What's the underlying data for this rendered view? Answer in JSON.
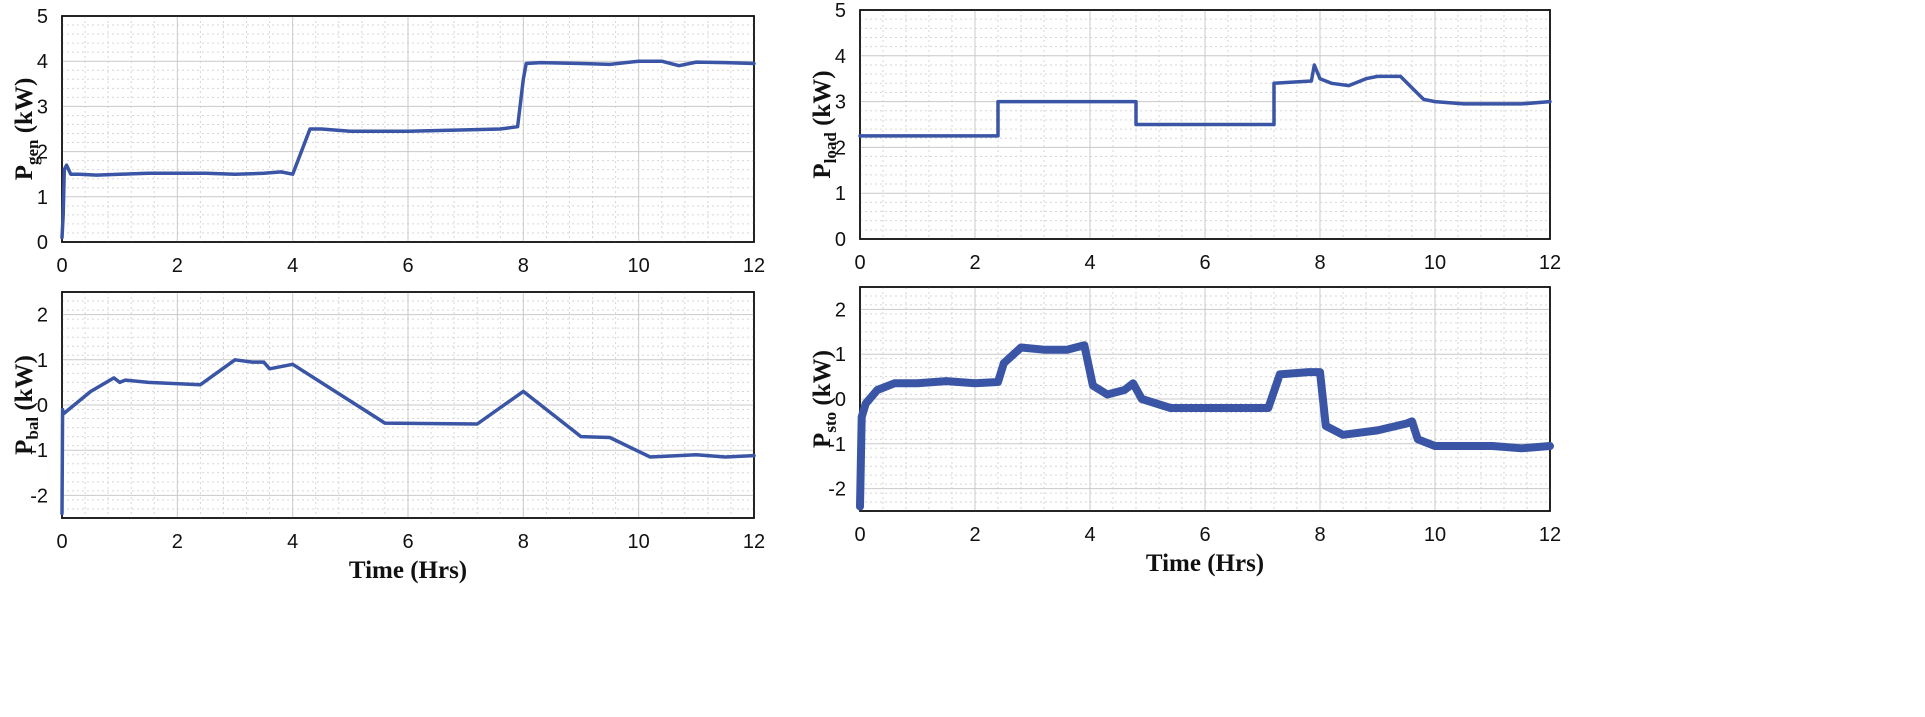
{
  "colors": {
    "series": "#3a55a5"
  },
  "chart_data": [
    {
      "type": "line",
      "ylabel_main": "P",
      "ylabel_sub": "gen",
      "ylabel_unit": " (kW)",
      "xlabel": "",
      "xlim": [
        0,
        12
      ],
      "ylim": [
        0,
        5
      ],
      "xticks": [
        "0",
        "2",
        "4",
        "6",
        "8",
        "10",
        "12"
      ],
      "yticks": [
        "0",
        "1",
        "2",
        "3",
        "4",
        "5"
      ],
      "grid": true,
      "series": [
        {
          "x": [
            0,
            0.02,
            0.04,
            0.08,
            0.15,
            0.3,
            0.6,
            1.0,
            1.5,
            2.0,
            2.5,
            3.0,
            3.5,
            3.8,
            4.0,
            4.3,
            4.5,
            5.0,
            6.0,
            7.0,
            7.6,
            7.9,
            8.0,
            8.05,
            8.3,
            9.0,
            9.5,
            10.0,
            10.4,
            10.7,
            11.0,
            11.5,
            12.0
          ],
          "y": [
            0.1,
            0.6,
            1.6,
            1.7,
            1.5,
            1.5,
            1.48,
            1.5,
            1.52,
            1.52,
            1.52,
            1.5,
            1.52,
            1.55,
            1.5,
            2.5,
            2.5,
            2.45,
            2.45,
            2.48,
            2.5,
            2.55,
            3.6,
            3.95,
            3.97,
            3.95,
            3.93,
            4.0,
            4.0,
            3.9,
            3.98,
            3.97,
            3.95
          ]
        }
      ]
    },
    {
      "type": "line",
      "ylabel_main": "P",
      "ylabel_sub": "load",
      "ylabel_unit": " (kW)",
      "xlabel": "",
      "xlim": [
        0,
        12
      ],
      "ylim": [
        0,
        5
      ],
      "xticks": [
        "0",
        "2",
        "4",
        "6",
        "8",
        "10",
        "12"
      ],
      "yticks": [
        "0",
        "1",
        "2",
        "3",
        "4",
        "5"
      ],
      "grid": true,
      "series": [
        {
          "x": [
            0,
            2.4,
            2.4,
            4.8,
            4.8,
            7.2,
            7.2,
            7.85,
            7.9,
            8.0,
            8.2,
            8.5,
            8.8,
            9.0,
            9.4,
            9.6,
            9.8,
            10.0,
            10.5,
            11.0,
            11.5,
            12.0
          ],
          "y": [
            2.25,
            2.25,
            3.0,
            3.0,
            2.5,
            2.5,
            3.4,
            3.45,
            3.8,
            3.5,
            3.4,
            3.35,
            3.5,
            3.55,
            3.55,
            3.3,
            3.05,
            3.0,
            2.95,
            2.95,
            2.95,
            3.0
          ]
        }
      ]
    },
    {
      "type": "line",
      "ylabel_main": "P",
      "ylabel_sub": "bal",
      "ylabel_unit": " (kW)",
      "xlabel": "Time (Hrs)",
      "xlim": [
        0,
        12
      ],
      "ylim": [
        -2.5,
        2.5
      ],
      "xticks": [
        "0",
        "2",
        "4",
        "6",
        "8",
        "10",
        "12"
      ],
      "yticks": [
        "-2",
        "-1",
        "0",
        "1",
        "2"
      ],
      "grid": true,
      "series": [
        {
          "x": [
            0,
            0.01,
            0.02,
            0.5,
            0.9,
            1.0,
            1.1,
            1.5,
            2.4,
            3.0,
            3.3,
            3.5,
            3.6,
            4.0,
            5.6,
            7.2,
            8.0,
            9.0,
            9.5,
            10.2,
            11.0,
            11.5,
            12.0
          ],
          "y": [
            -2.4,
            -0.1,
            -0.2,
            0.3,
            0.6,
            0.5,
            0.55,
            0.5,
            0.45,
            1.0,
            0.95,
            0.95,
            0.8,
            0.9,
            -0.4,
            -0.42,
            0.3,
            -0.7,
            -0.72,
            -1.15,
            -1.1,
            -1.15,
            -1.12
          ]
        }
      ]
    },
    {
      "type": "line",
      "ylabel_main": "P",
      "ylabel_sub": "sto",
      "ylabel_unit": " (kW)",
      "xlabel": "Time (Hrs)",
      "xlim": [
        0,
        12
      ],
      "ylim": [
        -2.5,
        2.5
      ],
      "xticks": [
        "0",
        "2",
        "4",
        "6",
        "8",
        "10",
        "12"
      ],
      "yticks": [
        "-2",
        "-1",
        "0",
        "1",
        "2"
      ],
      "grid": true,
      "series": [
        {
          "x": [
            0,
            0.03,
            0.1,
            0.3,
            0.6,
            1.0,
            1.5,
            2.0,
            2.4,
            2.5,
            2.8,
            3.2,
            3.6,
            3.9,
            4.05,
            4.3,
            4.6,
            4.75,
            4.9,
            5.4,
            6.0,
            6.5,
            7.1,
            7.3,
            7.8,
            8.0,
            8.1,
            8.4,
            9.0,
            9.5,
            9.6,
            9.7,
            10.0,
            10.5,
            11.0,
            11.5,
            12.0
          ],
          "y": [
            -2.4,
            -0.4,
            -0.1,
            0.2,
            0.35,
            0.35,
            0.4,
            0.35,
            0.38,
            0.8,
            1.15,
            1.1,
            1.1,
            1.2,
            0.3,
            0.1,
            0.2,
            0.35,
            0.0,
            -0.2,
            -0.2,
            -0.2,
            -0.2,
            0.55,
            0.6,
            0.6,
            -0.6,
            -0.8,
            -0.7,
            -0.55,
            -0.5,
            -0.9,
            -1.05,
            -1.05,
            -1.05,
            -1.1,
            -1.05
          ]
        }
      ]
    }
  ]
}
